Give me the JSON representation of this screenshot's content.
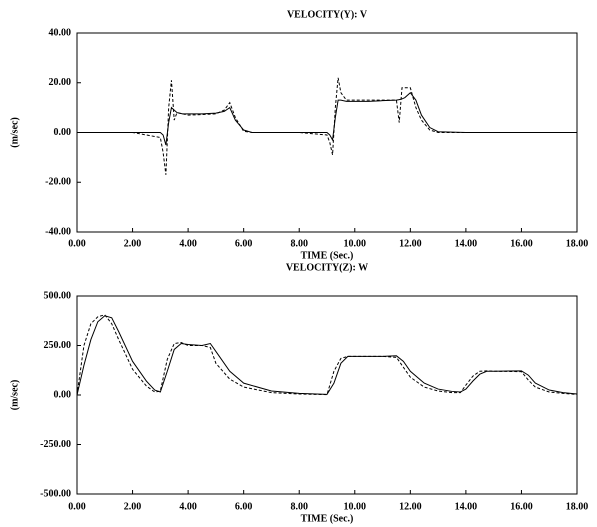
{
  "chart_data": [
    {
      "type": "line",
      "title": "VELOCITY(Y): V",
      "x_label": "TIME (Sec.)",
      "y_label": "(m/sec)",
      "x": [
        0,
        1,
        2,
        3,
        3.1,
        3.2,
        3.3,
        3.4,
        3.5,
        3.6,
        3.8,
        4,
        4.5,
        5,
        5.3,
        5.5,
        5.7,
        6,
        6.3,
        7,
        8,
        9,
        9.1,
        9.2,
        9.3,
        9.4,
        9.5,
        9.7,
        10,
        10.5,
        11,
        11.5,
        11.6,
        11.7,
        11.8,
        12,
        12.2,
        12.4,
        12.7,
        13,
        14,
        15,
        16,
        17,
        18
      ],
      "series": [
        {
          "color": "#000000",
          "style": "solid",
          "values": [
            0,
            0,
            0,
            0,
            -1,
            -5,
            4,
            10,
            9,
            8,
            7.5,
            7.5,
            7.5,
            7.8,
            8.5,
            10,
            5,
            1,
            0,
            0,
            0,
            0,
            -1,
            -3,
            6,
            13,
            13,
            12.5,
            12.5,
            12.5,
            12.8,
            13,
            13.2,
            13.5,
            14,
            16,
            13,
            7,
            2,
            0.3,
            0,
            0,
            0,
            0,
            0
          ]
        },
        {
          "color": "#000000",
          "style": "dashed",
          "values": [
            0,
            0,
            0,
            -2,
            -8,
            -17,
            10,
            21,
            5,
            8,
            7.5,
            7,
            7.2,
            7.5,
            9,
            12,
            6,
            0.5,
            0,
            0,
            0,
            -1,
            -4,
            -9,
            10,
            22,
            16,
            13,
            13,
            13,
            13,
            13,
            4,
            18,
            18,
            18,
            10,
            5,
            1,
            0,
            0,
            0,
            0,
            0,
            0
          ]
        }
      ],
      "xlim": [
        0,
        18
      ],
      "xticks": [
        {
          "value": 0,
          "label": "0.00"
        },
        {
          "value": 2,
          "label": "2.00"
        },
        {
          "value": 4,
          "label": "4.00"
        },
        {
          "value": 6,
          "label": "6.00"
        },
        {
          "value": 8,
          "label": "8.00"
        },
        {
          "value": 10,
          "label": "10.00"
        },
        {
          "value": 12,
          "label": "12.00"
        },
        {
          "value": 14,
          "label": "14.00"
        },
        {
          "value": 16,
          "label": "16.00"
        },
        {
          "value": 18,
          "label": "18.00"
        }
      ],
      "ylim": [
        -40,
        40
      ],
      "yticks": [
        {
          "value": -40,
          "label": "-40.00"
        },
        {
          "value": -20,
          "label": "-20.00"
        },
        {
          "value": 0,
          "label": "0.00"
        },
        {
          "value": 20,
          "label": "20.00"
        },
        {
          "value": 40,
          "label": "40.00"
        }
      ],
      "grid": false
    },
    {
      "type": "line",
      "title": "VELOCITY(Z): W",
      "x_label": "TIME (Sec.)",
      "y_label": "(m/sec)",
      "x": [
        0,
        0.25,
        0.5,
        0.75,
        1,
        1.25,
        1.5,
        2,
        2.5,
        2.8,
        3,
        3.25,
        3.5,
        3.75,
        4,
        4.5,
        4.8,
        5,
        5.5,
        6,
        7,
        8,
        9,
        9.25,
        9.5,
        9.75,
        10,
        11,
        11.5,
        11.75,
        12,
        12.5,
        13,
        13.5,
        13.8,
        14,
        14.25,
        14.5,
        14.75,
        15,
        16,
        16.25,
        16.5,
        17,
        17.5,
        18
      ],
      "series": [
        {
          "color": "#000000",
          "style": "solid",
          "values": [
            0,
            150,
            280,
            370,
            400,
            390,
            320,
            170,
            70,
            25,
            15,
            120,
            230,
            260,
            255,
            250,
            260,
            220,
            120,
            60,
            20,
            8,
            3,
            60,
            160,
            195,
            195,
            195,
            198,
            170,
            120,
            60,
            30,
            18,
            15,
            30,
            70,
            105,
            120,
            120,
            122,
            100,
            60,
            25,
            12,
            5
          ]
        },
        {
          "color": "#000000",
          "style": "dashed",
          "values": [
            0,
            250,
            360,
            395,
            405,
            360,
            280,
            130,
            45,
            15,
            20,
            180,
            260,
            265,
            250,
            250,
            240,
            160,
            80,
            40,
            12,
            5,
            2,
            120,
            185,
            195,
            195,
            195,
            190,
            140,
            90,
            40,
            20,
            12,
            12,
            50,
            95,
            120,
            122,
            120,
            118,
            75,
            40,
            15,
            8,
            3
          ]
        }
      ],
      "xlim": [
        0,
        18
      ],
      "xticks": [
        {
          "value": 0,
          "label": "0.00"
        },
        {
          "value": 2,
          "label": "2.00"
        },
        {
          "value": 4,
          "label": "4.00"
        },
        {
          "value": 6,
          "label": "6.00"
        },
        {
          "value": 8,
          "label": "8.00"
        },
        {
          "value": 10,
          "label": "10.00"
        },
        {
          "value": 12,
          "label": "12.00"
        },
        {
          "value": 14,
          "label": "14.00"
        },
        {
          "value": 16,
          "label": "16.00"
        },
        {
          "value": 18,
          "label": "18.00"
        }
      ],
      "ylim": [
        -500,
        500
      ],
      "yticks": [
        {
          "value": -500,
          "label": "-500.00"
        },
        {
          "value": -250,
          "label": "-250.00"
        },
        {
          "value": 0,
          "label": "0.00"
        },
        {
          "value": 250,
          "label": "250.00"
        },
        {
          "value": 500,
          "label": "500.00"
        }
      ],
      "grid": false
    }
  ]
}
